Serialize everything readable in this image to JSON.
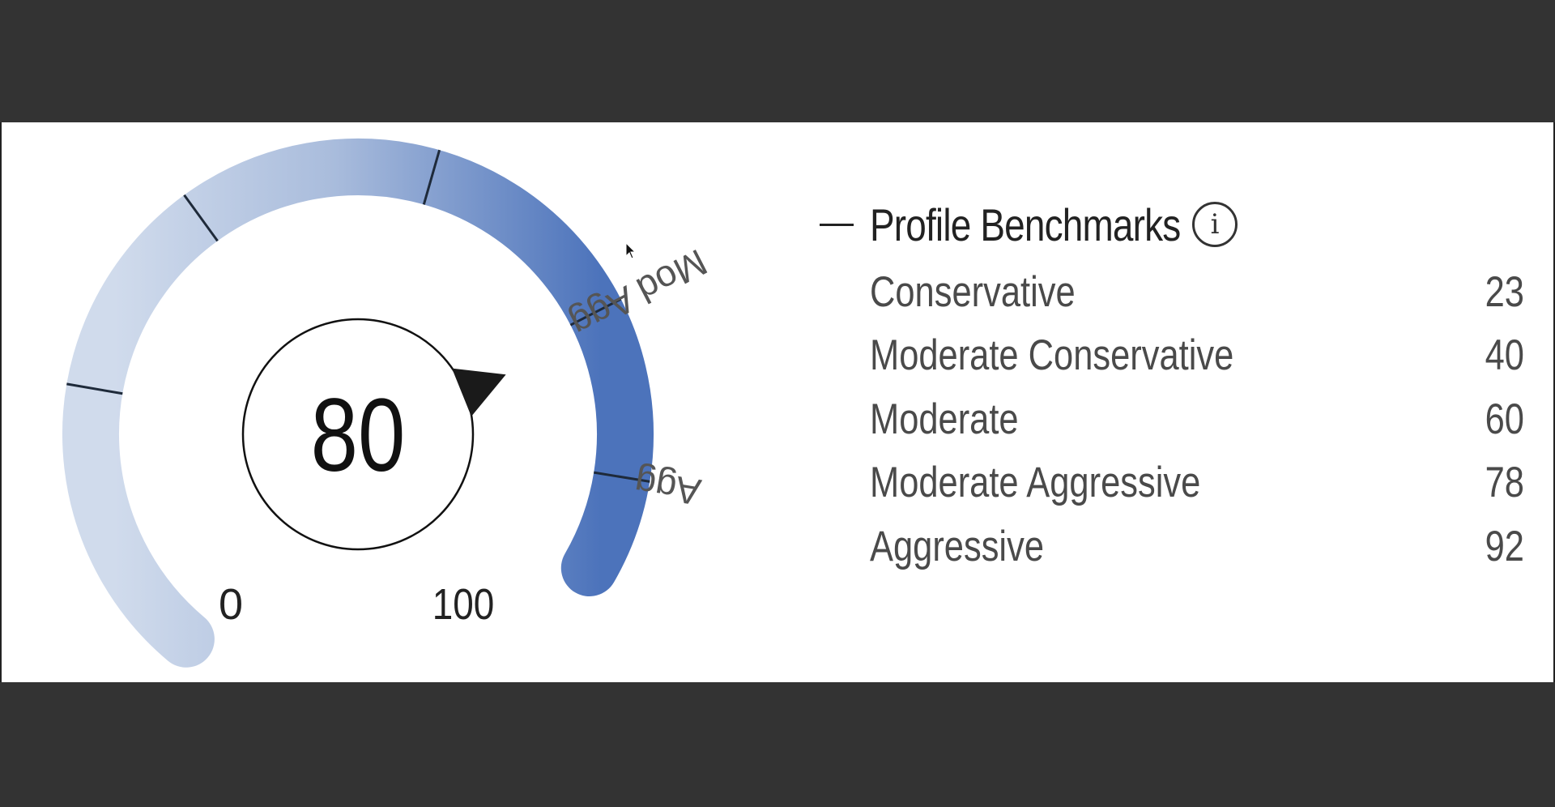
{
  "gauge": {
    "score": "80",
    "score_value": 80,
    "min_label": "0",
    "max_label": "100",
    "min": 0,
    "max": 100,
    "band_labels": [
      {
        "text": "Mod Agg",
        "at": 78
      },
      {
        "text": "Agg",
        "at": 92
      }
    ],
    "tick_values": [
      23,
      40,
      60,
      78,
      92
    ],
    "colors": {
      "light": "#d0dbec",
      "dark": "#4c73bb",
      "pointer": "#1a1a1a",
      "tick": "#1e2a3a"
    }
  },
  "legend": {
    "title": "Profile Benchmarks",
    "info_icon": "info-icon",
    "items": [
      {
        "label": "Conservative",
        "value": "23"
      },
      {
        "label": "Moderate Conservative",
        "value": "40"
      },
      {
        "label": "Moderate",
        "value": "60"
      },
      {
        "label": "Moderate Aggressive",
        "value": "78"
      },
      {
        "label": "Aggressive",
        "value": "92"
      }
    ]
  }
}
